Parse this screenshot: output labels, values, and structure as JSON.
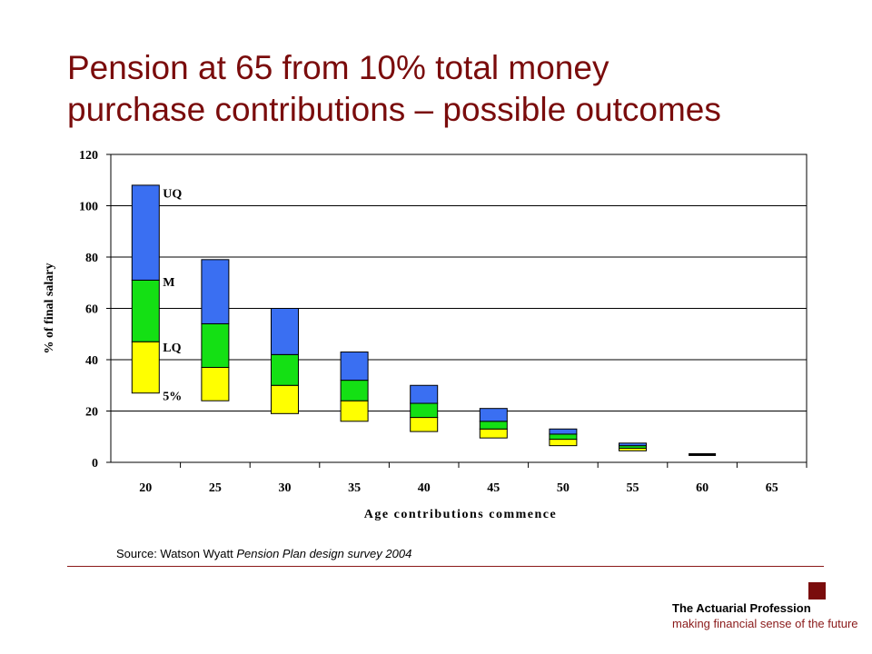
{
  "slide": {
    "title_line1": "Pension at 65 from 10% total money",
    "title_line2": "purchase contributions – possible outcomes",
    "source_prefix": "Source: Watson Wyatt ",
    "source_italic": "Pension Plan design survey 2004",
    "footer": {
      "name": "The Actuarial Profession",
      "tagline": "making financial sense of the future"
    }
  },
  "colors": {
    "title": "#7a0c0c",
    "uq_band": "#3a6ff2",
    "m_band": "#14e014",
    "lq_band": "#ffff00",
    "rule": "#8a1a1a"
  },
  "chart_data": {
    "type": "bar",
    "subtype": "floating stacked bands",
    "categories": [
      "20",
      "25",
      "30",
      "35",
      "40",
      "45",
      "50",
      "55",
      "60",
      "65"
    ],
    "xlabel": "Age contributions commence",
    "ylabel": "% of final salary",
    "ylim": [
      0,
      120
    ],
    "yticks": [
      0,
      20,
      40,
      60,
      80,
      100,
      120
    ],
    "grid": true,
    "band_labels": [
      "UQ",
      "M",
      "LQ",
      "5%"
    ],
    "percentiles": {
      "p5": [
        27,
        24,
        19,
        16,
        12,
        9.5,
        6.5,
        4.5,
        2.5,
        0
      ],
      "lq": [
        47,
        37,
        30,
        24,
        17.5,
        13,
        9,
        5.5,
        2.8,
        0
      ],
      "m": [
        71,
        54,
        42,
        32,
        23,
        16,
        11,
        6.5,
        3,
        0
      ],
      "uq": [
        108,
        79,
        60,
        43,
        30,
        21,
        13,
        7.5,
        3.2,
        0
      ]
    }
  }
}
